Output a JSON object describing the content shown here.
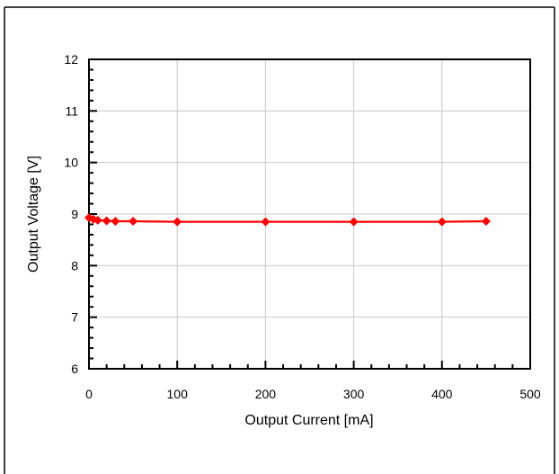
{
  "chart_data": {
    "type": "line",
    "title": "",
    "xlabel": "Output Current [mA]",
    "ylabel": "Output Voltage [V]",
    "xlim": [
      0,
      500
    ],
    "ylim": [
      6,
      12
    ],
    "x_ticks": [
      0,
      100,
      200,
      300,
      400,
      500
    ],
    "y_ticks": [
      6,
      7,
      8,
      9,
      10,
      11,
      12
    ],
    "x_tick_labels": [
      "0",
      "100",
      "200",
      "300",
      "400",
      "500"
    ],
    "y_tick_labels": [
      "6",
      "7",
      "8",
      "9",
      "10",
      "11",
      "12"
    ],
    "grid": true,
    "legend": "none",
    "series": [
      {
        "color": "#ff0000",
        "marker": "diamond",
        "points": [
          {
            "x": 0,
            "y": 8.93
          },
          {
            "x": 5,
            "y": 8.9
          },
          {
            "x": 10,
            "y": 8.88
          },
          {
            "x": 20,
            "y": 8.87
          },
          {
            "x": 30,
            "y": 8.86
          },
          {
            "x": 50,
            "y": 8.86
          },
          {
            "x": 100,
            "y": 8.85
          },
          {
            "x": 200,
            "y": 8.85
          },
          {
            "x": 300,
            "y": 8.85
          },
          {
            "x": 400,
            "y": 8.85
          },
          {
            "x": 450,
            "y": 8.86
          }
        ]
      }
    ]
  }
}
